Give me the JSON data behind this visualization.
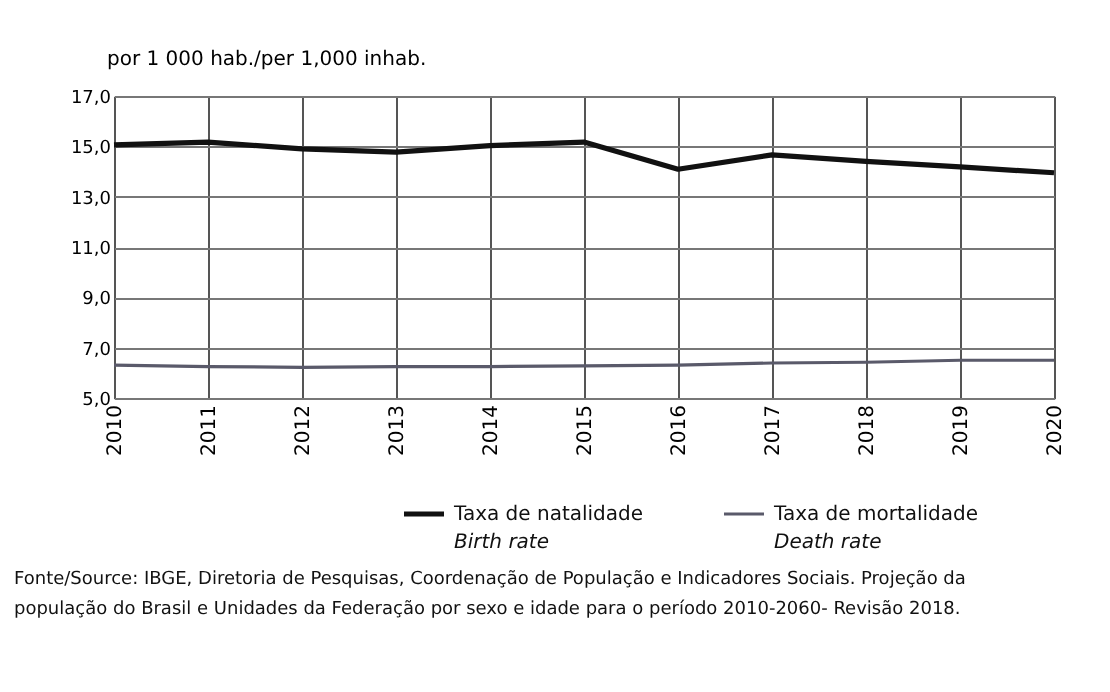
{
  "chart_data": {
    "type": "line",
    "ylabel": "por 1 000 hab./per 1,000 inhab.",
    "categories": [
      "2010",
      "2011",
      "2012",
      "2013",
      "2014",
      "2015",
      "2016",
      "2017",
      "2018",
      "2019",
      "2020"
    ],
    "series": [
      {
        "name": "Taxa de natalidade\nBirth rate",
        "color": "#111111",
        "values": [
          15.06,
          15.17,
          14.9,
          14.77,
          15.03,
          15.17,
          14.09,
          14.66,
          14.4,
          14.18,
          13.95
        ]
      },
      {
        "name": "Taxa de mortalidade\nDeath rate",
        "color": "#5a5a6a",
        "values": [
          6.31,
          6.25,
          6.22,
          6.25,
          6.25,
          6.28,
          6.31,
          6.39,
          6.42,
          6.5,
          6.5
        ]
      }
    ],
    "ylim": [
      5,
      17
    ],
    "yticks": [
      {
        "value": 5,
        "label": "5,0"
      },
      {
        "value": 7,
        "label": "7,0"
      },
      {
        "value": 9,
        "label": "9,0"
      },
      {
        "value": 11,
        "label": "11,0"
      },
      {
        "value": 13,
        "label": "13,0"
      },
      {
        "value": 15,
        "label": "15,0"
      },
      {
        "value": 17,
        "label": "17,0"
      }
    ],
    "grid": true,
    "legend": "bottom",
    "marker": "none",
    "line_style": "solid",
    "annotations": [
      "Fonte/Source: IBGE, Diretoria de Pesquisas, Coordenação de População e Indicadores Sociais. Projeção da\npopulação do Brasil e Unidades da Federação por sexo e idade para o período 2010-2060- Revisão 2018."
    ]
  }
}
